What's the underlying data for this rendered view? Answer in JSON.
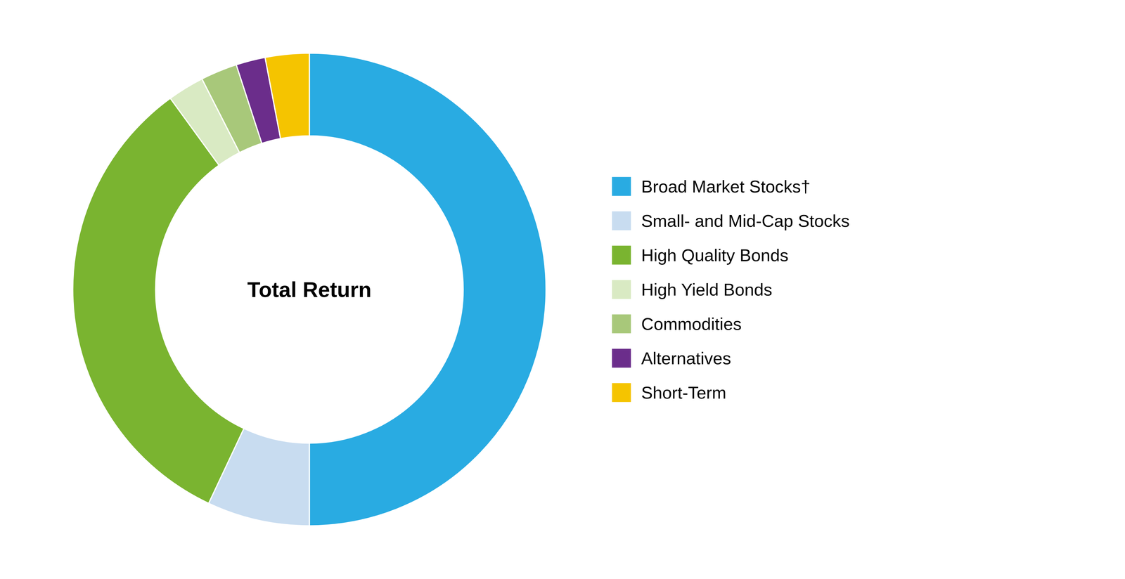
{
  "chart_data": {
    "type": "donut",
    "categories": [
      "Broad Market Stocks†",
      "Small- and Mid-Cap Stocks",
      "High Quality Bonds",
      "High Yield Bonds",
      "Commodities",
      "Alternatives",
      "Short-Term"
    ],
    "values": [
      50,
      7,
      33,
      2.5,
      2.5,
      2,
      3
    ],
    "colors": [
      "#29ABE2",
      "#C8DCF0",
      "#7AB430",
      "#D9EAC3",
      "#A8C87A",
      "#6B2D8B",
      "#F5C400"
    ],
    "annotations": [
      "Total Return"
    ],
    "legend": "right"
  }
}
